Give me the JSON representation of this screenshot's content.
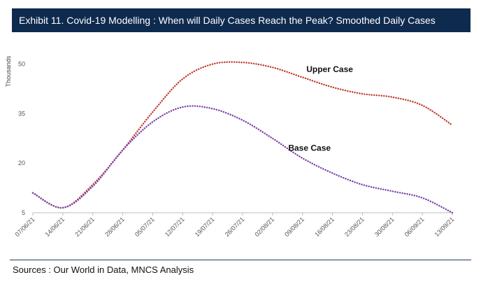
{
  "title": "Exhibit 11. Covid-19 Modelling : When will Daily Cases Reach the Peak? Smoothed Daily Cases",
  "footer": "Sources : Our World in Data, MNCS Analysis",
  "colors": {
    "title_bg": "#0e2a4f",
    "upper": "#c0392b",
    "base": "#7b3fa8"
  },
  "chart_data": {
    "type": "line",
    "title": "Covid-19 Modelling : When will Daily Cases Reach the Peak? Smoothed Daily Cases",
    "ylabel": "Thousands",
    "xlabel": "",
    "ylim": [
      5,
      55
    ],
    "yticks": [
      5,
      20,
      35,
      50
    ],
    "categories": [
      "07/06/21",
      "14/06/21",
      "21/06/21",
      "28/06/21",
      "05/07/21",
      "12/07/21",
      "19/07/21",
      "26/07/21",
      "02/08/21",
      "09/08/21",
      "16/08/21",
      "23/08/21",
      "30/08/21",
      "06/09/21",
      "13/09/21"
    ],
    "series": [
      {
        "name": "Upper Case",
        "label": "Upper Case",
        "values": [
          11,
          6.5,
          13.5,
          24,
          35.5,
          45.5,
          50,
          50.5,
          49,
          46,
          43,
          41,
          40,
          37.5,
          31.5
        ]
      },
      {
        "name": "Base Case",
        "label": "Base Case",
        "values": [
          11,
          6.5,
          13,
          24,
          32.5,
          37,
          36.5,
          33,
          27.5,
          21.5,
          17,
          13.5,
          11.5,
          9.5,
          5
        ]
      }
    ]
  }
}
